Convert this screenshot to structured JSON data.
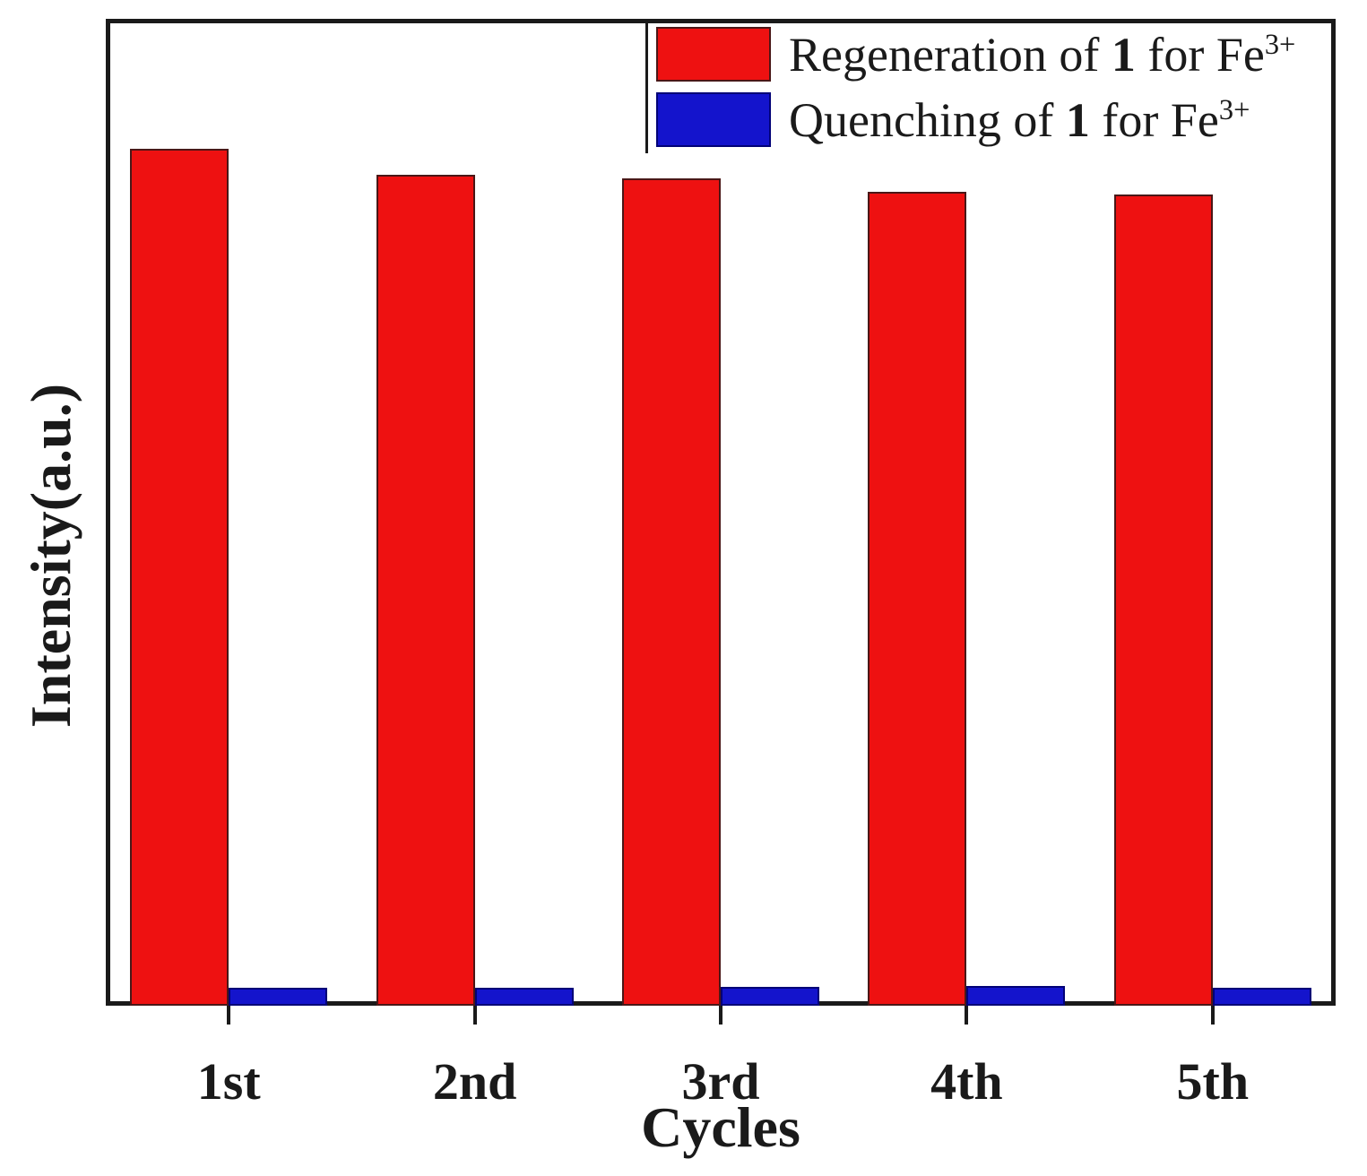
{
  "figure": {
    "x_axis_label": "Cycles",
    "y_axis_label": "Intensity(a.u.)"
  },
  "colors": {
    "regeneration_red": "#ee1111",
    "quenching_blue": "#1414cc",
    "axis_black": "#1a1a1a"
  },
  "legend": {
    "items": [
      {
        "swatch_color": "#ee1111",
        "prefix": "Regeneration of ",
        "bold": "1",
        "suffix": " for Fe",
        "sup": "3+"
      },
      {
        "swatch_color": "#1414cc",
        "prefix": "Quenching of ",
        "bold": "1",
        "suffix": " for Fe",
        "sup": "3+"
      }
    ]
  },
  "chart_data": {
    "type": "bar",
    "title": "",
    "xlabel": "Cycles",
    "ylabel": "Intensity(a.u.)",
    "categories": [
      "1st",
      "2nd",
      "3rd",
      "4th",
      "5th"
    ],
    "series": [
      {
        "name": "Regeneration of 1 for Fe3+",
        "color": "#ee1111",
        "values": [
          0.868,
          0.842,
          0.838,
          0.825,
          0.822
        ]
      },
      {
        "name": "Quenching of 1 for Fe3+",
        "color": "#1414cc",
        "values": [
          0.018,
          0.018,
          0.019,
          0.02,
          0.018
        ]
      }
    ],
    "ylim": [
      0,
      1
    ],
    "y_units": "a.u. (relative intensity, no numeric ticks shown)",
    "grid": false,
    "legend_position": "top-right"
  }
}
